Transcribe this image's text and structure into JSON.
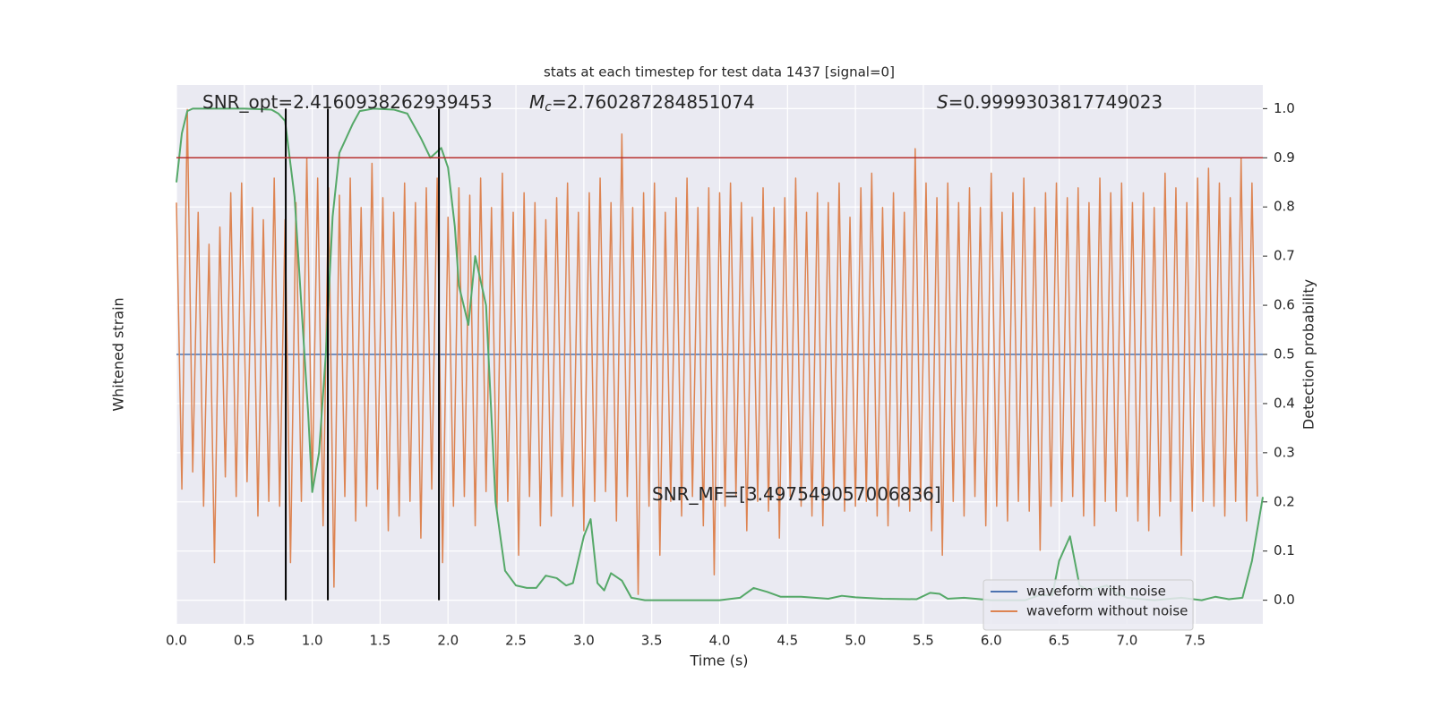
{
  "chart_data": {
    "type": "line",
    "title": "stats at each timestep for test data 1437 [signal=0]",
    "x_label": "Time (s)",
    "y_label": "Whitened strain",
    "y2_label": "Detection probability",
    "xlim": [
      0,
      8
    ],
    "ylim": [
      -1.1,
      1.1
    ],
    "y2lim": [
      -0.048,
      1.048
    ],
    "xticks": [
      {
        "value": 0,
        "label": "0.0"
      },
      0.5,
      {
        "value": 1,
        "label": "1.0"
      },
      1.5,
      {
        "value": 2,
        "label": "2.0"
      },
      2.5,
      {
        "value": 3,
        "label": "3.0"
      },
      3.5,
      {
        "value": 4,
        "label": "4.0"
      },
      4.5,
      {
        "value": 5,
        "label": "5.0"
      },
      5.5,
      {
        "value": 6,
        "label": "6.0"
      },
      6.5,
      {
        "value": 7,
        "label": "7.0"
      },
      7.5
    ],
    "y2ticks": [
      {
        "value": 0,
        "label": "0.0"
      },
      0.1,
      0.2,
      0.3,
      0.4,
      0.5,
      0.6,
      0.7,
      0.8,
      0.9,
      {
        "value": 1,
        "label": "1.0"
      }
    ],
    "grid": true,
    "legend": "lower right",
    "series": [
      {
        "name": "waveform with noise",
        "color": "#4c72b0",
        "x": [
          0,
          8
        ],
        "values": [
          0,
          0
        ]
      },
      {
        "name": "waveform without noise",
        "color": "#dd8452",
        "x": [
          0,
          0.04,
          0.08,
          0.12,
          0.16,
          0.2,
          0.24,
          0.28,
          0.32,
          0.36,
          0.4,
          0.44,
          0.48,
          0.52,
          0.56,
          0.6,
          0.64,
          0.68,
          0.72,
          0.76,
          0.8,
          0.84,
          0.88,
          0.92,
          0.96,
          1,
          1.04,
          1.08,
          1.12,
          1.16,
          1.2,
          1.24,
          1.28,
          1.32,
          1.36,
          1.4,
          1.44,
          1.48,
          1.52,
          1.56,
          1.6,
          1.64,
          1.68,
          1.72,
          1.76,
          1.8,
          1.84,
          1.88,
          1.92,
          1.96,
          2,
          2.04,
          2.08,
          2.12,
          2.16,
          2.2,
          2.24,
          2.28,
          2.32,
          2.36,
          2.4,
          2.44,
          2.48,
          2.52,
          2.56,
          2.6,
          2.64,
          2.68,
          2.72,
          2.76,
          2.8,
          2.84,
          2.88,
          2.92,
          2.96,
          3,
          3.04,
          3.08,
          3.12,
          3.16,
          3.2,
          3.24,
          3.28,
          3.32,
          3.36,
          3.4,
          3.44,
          3.48,
          3.52,
          3.56,
          3.6,
          3.64,
          3.68,
          3.72,
          3.76,
          3.8,
          3.84,
          3.88,
          3.92,
          3.96,
          4,
          4.04,
          4.08,
          4.12,
          4.16,
          4.2,
          4.24,
          4.28,
          4.32,
          4.36,
          4.4,
          4.44,
          4.48,
          4.52,
          4.56,
          4.6,
          4.64,
          4.68,
          4.72,
          4.76,
          4.8,
          4.84,
          4.88,
          4.92,
          4.96,
          5,
          5.04,
          5.08,
          5.12,
          5.16,
          5.2,
          5.24,
          5.28,
          5.32,
          5.36,
          5.4,
          5.44,
          5.48,
          5.52,
          5.56,
          5.6,
          5.64,
          5.68,
          5.72,
          5.76,
          5.8,
          5.84,
          5.88,
          5.92,
          5.96,
          6,
          6.04,
          6.08,
          6.12,
          6.16,
          6.2,
          6.24,
          6.28,
          6.32,
          6.36,
          6.4,
          6.44,
          6.48,
          6.52,
          6.56,
          6.6,
          6.64,
          6.68,
          6.72,
          6.76,
          6.8,
          6.84,
          6.88,
          6.92,
          6.96,
          7,
          7.04,
          7.08,
          7.12,
          7.16,
          7.2,
          7.24,
          7.28,
          7.32,
          7.36,
          7.4,
          7.44,
          7.48,
          7.52,
          7.56,
          7.6,
          7.64,
          7.68,
          7.72,
          7.76,
          7.8,
          7.84,
          7.88,
          7.92,
          7.96
        ],
        "values": [
          0.62,
          -0.55,
          1.0,
          -0.48,
          0.58,
          -0.62,
          0.45,
          -0.85,
          0.52,
          -0.5,
          0.66,
          -0.58,
          0.7,
          -0.52,
          0.6,
          -0.66,
          0.55,
          -0.6,
          0.72,
          -0.62,
          0.55,
          -0.85,
          0.62,
          -0.6,
          0.8,
          -0.55,
          0.72,
          -0.7,
          0.68,
          -0.95,
          0.65,
          -0.58,
          0.72,
          -0.68,
          0.6,
          -0.62,
          0.78,
          -0.55,
          0.64,
          -0.72,
          0.58,
          -0.66,
          0.7,
          -0.6,
          0.62,
          -0.75,
          0.68,
          -0.55,
          0.72,
          -0.85,
          0.56,
          -0.62,
          0.68,
          -0.58,
          0.65,
          -0.7,
          0.72,
          -0.56,
          0.6,
          -0.64,
          0.74,
          -0.6,
          0.58,
          -0.82,
          0.66,
          -0.58,
          0.62,
          -0.7,
          0.55,
          -0.66,
          0.64,
          -0.58,
          0.7,
          -0.62,
          0.58,
          -0.72,
          0.66,
          -0.6,
          0.72,
          -0.56,
          0.62,
          -0.68,
          0.9,
          -0.58,
          0.6,
          -0.98,
          0.66,
          -0.62,
          0.7,
          -0.82,
          0.58,
          -0.6,
          0.64,
          -0.66,
          0.72,
          -0.58,
          0.6,
          -0.7,
          0.68,
          -0.9,
          0.66,
          -0.62,
          0.7,
          -0.58,
          0.62,
          -0.72,
          0.56,
          -0.6,
          0.68,
          -0.64,
          0.6,
          -0.75,
          0.64,
          -0.58,
          0.72,
          -0.62,
          0.58,
          -0.66,
          0.66,
          -0.7,
          0.62,
          -0.58,
          0.7,
          -0.64,
          0.56,
          -0.62,
          0.68,
          -0.6,
          0.74,
          -0.66,
          0.6,
          -0.7,
          0.66,
          -0.62,
          0.58,
          -0.64,
          0.84,
          -0.6,
          0.7,
          -0.72,
          0.64,
          -0.82,
          0.7,
          -0.6,
          0.62,
          -0.66,
          0.68,
          -0.58,
          0.6,
          -0.7,
          0.74,
          -0.62,
          0.58,
          -0.68,
          0.66,
          -0.6,
          0.72,
          -0.64,
          0.6,
          -0.8,
          0.66,
          -0.62,
          0.7,
          -0.6,
          0.64,
          -0.58,
          0.68,
          -0.66,
          0.62,
          -0.7,
          0.72,
          -0.6,
          0.66,
          -0.64,
          0.7,
          -0.58,
          0.62,
          -0.68,
          0.66,
          -0.72,
          0.6,
          -0.66,
          0.74,
          -0.6,
          0.68,
          -0.82,
          0.62,
          -0.64,
          0.72,
          -0.6,
          0.76,
          -0.62,
          0.7,
          -0.66,
          0.64,
          -0.6,
          0.8,
          -0.68,
          0.7,
          -0.58
        ]
      },
      {
        "color": "#55a868",
        "axis": "y2",
        "x": [
          0,
          0.04,
          0.08,
          0.12,
          0.3,
          0.5,
          0.7,
          0.75,
          0.8,
          0.87,
          0.92,
          0.97,
          1.0,
          1.05,
          1.1,
          1.15,
          1.2,
          1.3,
          1.35,
          1.45,
          1.6,
          1.7,
          1.8,
          1.87,
          1.95,
          2.0,
          2.05,
          2.08,
          2.15,
          2.2,
          2.28,
          2.35,
          2.42,
          2.5,
          2.58,
          2.65,
          2.72,
          2.8,
          2.87,
          2.92,
          3.0,
          3.05,
          3.1,
          3.15,
          3.2,
          3.28,
          3.35,
          3.45,
          3.6,
          4.0,
          4.15,
          4.25,
          4.35,
          4.45,
          4.6,
          4.8,
          4.9,
          5.0,
          5.2,
          5.45,
          5.55,
          5.62,
          5.68,
          5.8,
          6.0,
          6.25,
          6.35,
          6.45,
          6.5,
          6.58,
          6.65,
          6.72,
          6.85,
          6.92,
          7.0,
          7.2,
          7.4,
          7.55,
          7.65,
          7.75,
          7.85,
          7.92,
          8.0
        ],
        "values": [
          0.85,
          0.95,
          0.995,
          1.0,
          1.0,
          1.0,
          0.998,
          0.99,
          0.975,
          0.82,
          0.6,
          0.38,
          0.22,
          0.3,
          0.5,
          0.78,
          0.91,
          0.97,
          0.995,
          1.0,
          0.998,
          0.99,
          0.94,
          0.9,
          0.92,
          0.88,
          0.76,
          0.64,
          0.56,
          0.7,
          0.6,
          0.2,
          0.06,
          0.03,
          0.025,
          0.025,
          0.05,
          0.045,
          0.03,
          0.035,
          0.13,
          0.165,
          0.035,
          0.02,
          0.055,
          0.04,
          0.005,
          0.0,
          0.0,
          0.0,
          0.005,
          0.025,
          0.017,
          0.007,
          0.007,
          0.003,
          0.009,
          0.006,
          0.003,
          0.002,
          0.015,
          0.013,
          0.003,
          0.005,
          0.0,
          0.0,
          0.01,
          0.01,
          0.08,
          0.13,
          0.03,
          0.02,
          0.03,
          0.015,
          0.005,
          0.0,
          0.005,
          0.0,
          0.007,
          0.002,
          0.005,
          0.08,
          0.21
        ]
      }
    ],
    "vlines": [
      0.805,
      1.115,
      1.933
    ],
    "threshold": 0.9,
    "annotations": [
      {
        "text": "SNR_opt=2.4160938262939453"
      },
      {
        "symbol": "M",
        "subscript": "c",
        "text": "=2.760287284851074"
      },
      {
        "symbol": "S",
        "text": "=0.9999303817749023"
      },
      {
        "text": "SNR_MF=[3.497549057006836]"
      }
    ]
  }
}
